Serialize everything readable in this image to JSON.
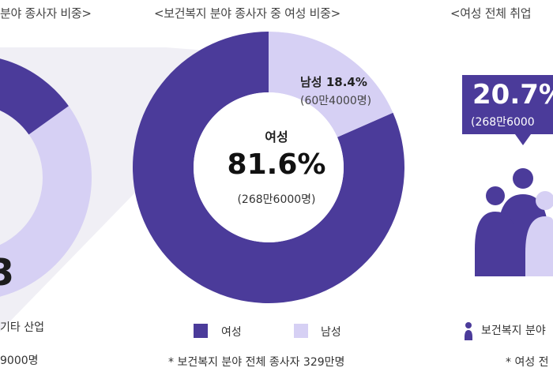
{
  "colors": {
    "female": "#4b3b9a",
    "male": "#d6d0f4",
    "bg_band": "#f0eff5",
    "callout": "#4b3b9a"
  },
  "left_panel": {
    "title_fragment": "분야 종사자 비중>",
    "legend_fragment": "기타 산업",
    "note_fragment": "9000명",
    "big_digit": "3"
  },
  "center_panel": {
    "title": "<보건복지 분야 종사자 중 여성 비중>",
    "female_label": "여성",
    "female_pct": "81.6%",
    "female_count": "(268만6000명)",
    "male_label": "남성 18.4%",
    "male_count": "(60만4000명)",
    "legend_female": "여성",
    "legend_male": "남성",
    "note": "* 보건복지 분야 전체 종사자 329만명"
  },
  "right_panel": {
    "title_fragment": "<여성 전체 취업",
    "callout_pct": "20.7%",
    "callout_count": "(268만6000",
    "legend_fragment": "보건복지 분야",
    "note_fragment": "* 여성 전"
  },
  "chart_data": {
    "type": "pie",
    "title": "<보건복지 분야 종사자 중 여성 비중>",
    "categories": [
      "여성",
      "남성"
    ],
    "values": [
      81.6,
      18.4
    ],
    "counts": [
      "268만6000명",
      "60만4000명"
    ],
    "total_note": "* 보건복지 분야 전체 종사자 329만명",
    "legend_position": "bottom"
  }
}
